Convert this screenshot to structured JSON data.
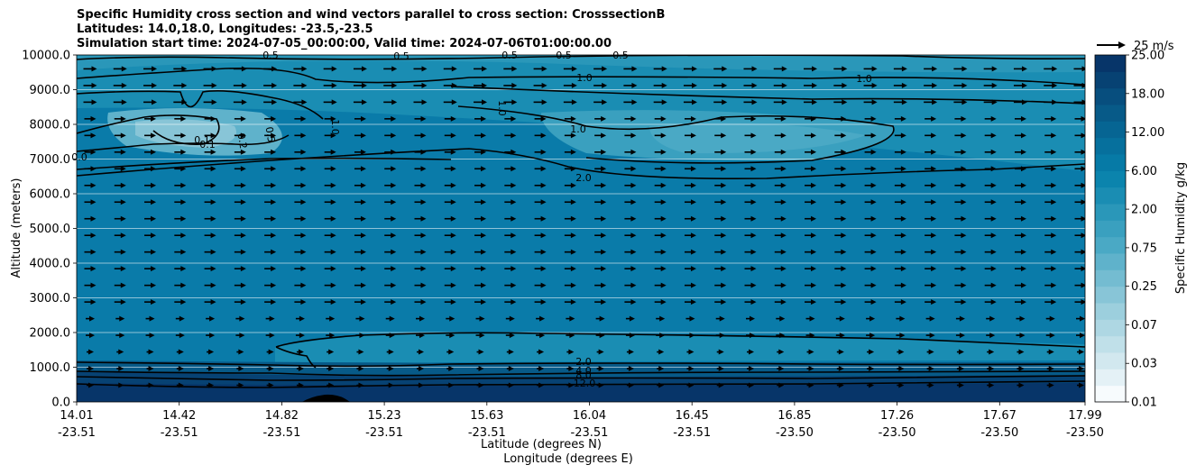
{
  "chart_data": {
    "type": "contour_cross_section",
    "title_lines": [
      "Specific Humidity cross section and wind vectors parallel to cross section: CrosssectionB",
      "Latitudes: 14.0,18.0, Longitudes: -23.5,-23.5",
      "Simulation start time: 2024-07-05_00:00:00, Valid time: 2024-07-06T01:00:00.00"
    ],
    "ylabel": "Altitude (meters)",
    "xlabel": "Latitude (degrees N)",
    "xlabel2": "Longitude (degrees E)",
    "ylim": [
      0,
      10000
    ],
    "y_ticks": [
      "0.0",
      "1000.0",
      "2000.0",
      "3000.0",
      "4000.0",
      "5000.0",
      "6000.0",
      "7000.0",
      "8000.0",
      "9000.0",
      "10000.0"
    ],
    "x_ticks": [
      {
        "lat": "14.01",
        "lon": "-23.51"
      },
      {
        "lat": "14.42",
        "lon": "-23.51"
      },
      {
        "lat": "14.82",
        "lon": "-23.51"
      },
      {
        "lat": "15.23",
        "lon": "-23.51"
      },
      {
        "lat": "15.63",
        "lon": "-23.51"
      },
      {
        "lat": "16.04",
        "lon": "-23.51"
      },
      {
        "lat": "16.45",
        "lon": "-23.51"
      },
      {
        "lat": "16.85",
        "lon": "-23.50"
      },
      {
        "lat": "17.26",
        "lon": "-23.50"
      },
      {
        "lat": "17.67",
        "lon": "-23.50"
      },
      {
        "lat": "17.99",
        "lon": "-23.50"
      }
    ],
    "xlim": [
      14.01,
      17.99
    ],
    "colorbar": {
      "label": "Specific Humidity g/kg",
      "levels": [
        0.01,
        0.02,
        0.03,
        0.05,
        0.07,
        0.1,
        0.15,
        0.25,
        0.4,
        0.5,
        0.75,
        1.0,
        1.5,
        2.0,
        3.0,
        4.0,
        6.0,
        8.0,
        12.0,
        15.0,
        18.0,
        25.0
      ],
      "tick_labels": [
        "0.01",
        "0.03",
        "0.07",
        "0.25",
        "0.75",
        "2.00",
        "6.00",
        "12.00",
        "18.00",
        "25.00"
      ],
      "colors": [
        "#f7fbfd",
        "#e4f1f6",
        "#d2e8ef",
        "#c0e0e9",
        "#aed7e3",
        "#9ccfdd",
        "#88c5d7",
        "#74bcd1",
        "#5fb2cb",
        "#4aa9c5",
        "#3aa0bf",
        "#2a97b9",
        "#1a8db3",
        "#0b84ad",
        "#067aa6",
        "#06709d",
        "#066593",
        "#075a88",
        "#074e7e",
        "#074273",
        "#073569"
      ]
    },
    "contour_labels": [
      "0.5",
      "0.5",
      "0.5",
      "0.5",
      "0.5",
      "1.0",
      "1.0",
      "1.0",
      "1.0",
      "1.0",
      "0.1",
      "0.1",
      "0.2",
      "0.5",
      "0.0",
      "2.0",
      "2.0",
      "4.0",
      "8.0",
      "12.0"
    ],
    "quiver_key": {
      "label": "25 m/s",
      "value": 25,
      "units": "m/s"
    },
    "wind_direction": "parallel to cross section, toward increasing latitude",
    "terrain_peak": {
      "lat": 15.05,
      "altitude": 200
    }
  }
}
